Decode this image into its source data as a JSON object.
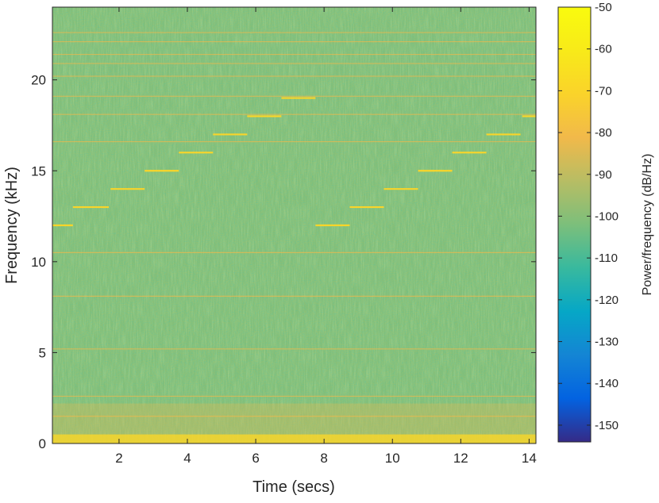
{
  "chart_data": {
    "type": "heatmap",
    "title": "",
    "xlabel": "Time (secs)",
    "ylabel": "Frequency (kHz)",
    "xlim": [
      0.05,
      14.2
    ],
    "ylim": [
      0,
      24
    ],
    "xticks": [
      2,
      4,
      6,
      8,
      10,
      12,
      14
    ],
    "yticks": [
      0,
      5,
      10,
      15,
      20
    ],
    "colorbar": {
      "label": "Power/frequency (dB/Hz)",
      "range": [
        -154,
        -50
      ],
      "ticks": [
        -50,
        -60,
        -70,
        -80,
        -90,
        -100,
        -110,
        -120,
        -130,
        -140,
        -150
      ],
      "colormap": "parula"
    },
    "background_level_db": -100,
    "low_frequency_band": {
      "freq_max_khz": 0.5,
      "level_db": -70
    },
    "tones": [
      {
        "t_start": 0.05,
        "t_end": 0.65,
        "freq_khz": 12,
        "level_db": -70
      },
      {
        "t_start": 0.65,
        "t_end": 1.7,
        "freq_khz": 13,
        "level_db": -70
      },
      {
        "t_start": 1.75,
        "t_end": 2.75,
        "freq_khz": 14,
        "level_db": -70
      },
      {
        "t_start": 2.75,
        "t_end": 3.75,
        "freq_khz": 15,
        "level_db": -70
      },
      {
        "t_start": 3.75,
        "t_end": 4.75,
        "freq_khz": 16,
        "level_db": -70
      },
      {
        "t_start": 4.75,
        "t_end": 5.75,
        "freq_khz": 17,
        "level_db": -70
      },
      {
        "t_start": 5.75,
        "t_end": 6.75,
        "freq_khz": 18,
        "level_db": -70
      },
      {
        "t_start": 6.75,
        "t_end": 7.75,
        "freq_khz": 19,
        "level_db": -70
      },
      {
        "t_start": 7.75,
        "t_end": 8.75,
        "freq_khz": 12,
        "level_db": -70
      },
      {
        "t_start": 8.75,
        "t_end": 9.75,
        "freq_khz": 13,
        "level_db": -70
      },
      {
        "t_start": 9.75,
        "t_end": 10.75,
        "freq_khz": 14,
        "level_db": -70
      },
      {
        "t_start": 10.75,
        "t_end": 11.75,
        "freq_khz": 15,
        "level_db": -70
      },
      {
        "t_start": 11.75,
        "t_end": 12.75,
        "freq_khz": 16,
        "level_db": -70
      },
      {
        "t_start": 12.75,
        "t_end": 13.75,
        "freq_khz": 17,
        "level_db": -70
      },
      {
        "t_start": 13.8,
        "t_end": 14.2,
        "freq_khz": 18,
        "level_db": -70
      }
    ],
    "faint_horizontal_lines_khz": [
      1.5,
      2.6,
      5.2,
      8.1,
      10.5,
      16.6,
      18.1,
      19.1,
      20.2,
      20.9,
      21.4,
      22.1,
      22.6
    ]
  }
}
